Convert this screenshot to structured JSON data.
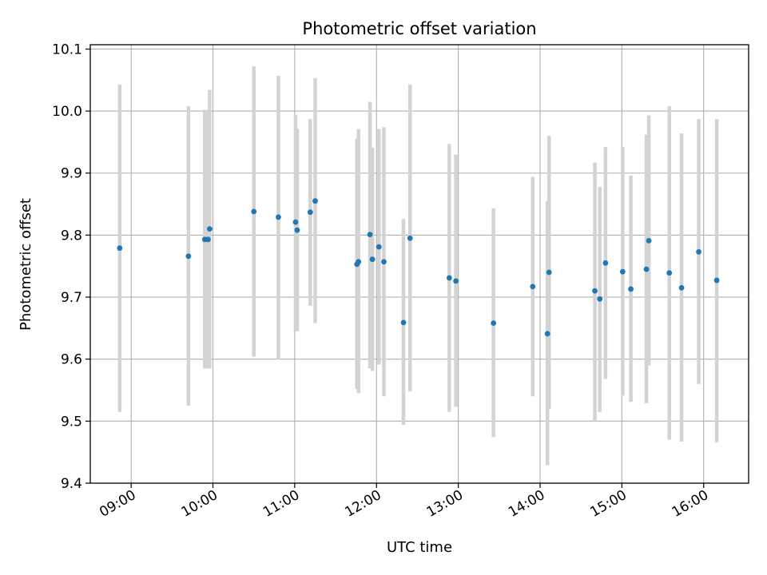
{
  "chart_data": {
    "type": "scatter",
    "title": "Photometric offset variation",
    "xlabel": "UTC time",
    "ylabel": "Photometric offset",
    "xlim": [
      8.5,
      16.55
    ],
    "ylim": [
      9.4,
      10.107
    ],
    "grid": true,
    "x_ticks": [
      {
        "value": 9,
        "label": "09:00"
      },
      {
        "value": 10,
        "label": "10:00"
      },
      {
        "value": 11,
        "label": "11:00"
      },
      {
        "value": 12,
        "label": "12:00"
      },
      {
        "value": 13,
        "label": "13:00"
      },
      {
        "value": 14,
        "label": "14:00"
      },
      {
        "value": 15,
        "label": "15:00"
      },
      {
        "value": 16,
        "label": "16:00"
      }
    ],
    "y_ticks": [
      {
        "value": 9.4,
        "label": "9.4"
      },
      {
        "value": 9.5,
        "label": "9.5"
      },
      {
        "value": 9.6,
        "label": "9.6"
      },
      {
        "value": 9.7,
        "label": "9.7"
      },
      {
        "value": 9.8,
        "label": "9.8"
      },
      {
        "value": 9.9,
        "label": "9.9"
      },
      {
        "value": 10.0,
        "label": "10.0"
      },
      {
        "value": 10.1,
        "label": "10.1"
      }
    ],
    "colors": {
      "marker": "#1f77b4",
      "errorbar": "#d3d3d3",
      "grid": "#b0b0b0",
      "axes": "#000000"
    },
    "points": [
      {
        "t": 8.86,
        "y": 9.779,
        "lo": 9.515,
        "hi": 10.043
      },
      {
        "t": 9.7,
        "y": 9.766,
        "lo": 9.525,
        "hi": 10.008
      },
      {
        "t": 9.9,
        "y": 9.793,
        "lo": 9.585,
        "hi": 10.002
      },
      {
        "t": 9.94,
        "y": 9.793,
        "lo": 9.585,
        "hi": 10.002
      },
      {
        "t": 9.96,
        "y": 9.81,
        "lo": 9.585,
        "hi": 10.034
      },
      {
        "t": 10.5,
        "y": 9.838,
        "lo": 9.604,
        "hi": 10.072
      },
      {
        "t": 10.8,
        "y": 9.829,
        "lo": 9.6,
        "hi": 10.057
      },
      {
        "t": 11.01,
        "y": 9.821,
        "lo": 9.645,
        "hi": 9.994
      },
      {
        "t": 11.03,
        "y": 9.808,
        "lo": 9.645,
        "hi": 9.972
      },
      {
        "t": 11.19,
        "y": 9.837,
        "lo": 9.686,
        "hi": 9.987
      },
      {
        "t": 11.25,
        "y": 9.855,
        "lo": 9.658,
        "hi": 10.053
      },
      {
        "t": 11.76,
        "y": 9.753,
        "lo": 9.552,
        "hi": 9.955
      },
      {
        "t": 11.78,
        "y": 9.757,
        "lo": 9.545,
        "hi": 9.971
      },
      {
        "t": 11.92,
        "y": 9.801,
        "lo": 9.585,
        "hi": 10.015
      },
      {
        "t": 11.95,
        "y": 9.761,
        "lo": 9.581,
        "hi": 9.941
      },
      {
        "t": 12.03,
        "y": 9.781,
        "lo": 9.591,
        "hi": 9.971
      },
      {
        "t": 12.09,
        "y": 9.757,
        "lo": 9.54,
        "hi": 9.974
      },
      {
        "t": 12.33,
        "y": 9.659,
        "lo": 9.494,
        "hi": 9.826
      },
      {
        "t": 12.41,
        "y": 9.795,
        "lo": 9.548,
        "hi": 10.043
      },
      {
        "t": 12.89,
        "y": 9.731,
        "lo": 9.515,
        "hi": 9.947
      },
      {
        "t": 12.97,
        "y": 9.726,
        "lo": 9.523,
        "hi": 9.93
      },
      {
        "t": 13.43,
        "y": 9.658,
        "lo": 9.474,
        "hi": 9.843
      },
      {
        "t": 13.91,
        "y": 9.717,
        "lo": 9.54,
        "hi": 9.894
      },
      {
        "t": 14.09,
        "y": 9.641,
        "lo": 9.429,
        "hi": 9.855
      },
      {
        "t": 14.11,
        "y": 9.74,
        "lo": 9.52,
        "hi": 9.96
      },
      {
        "t": 14.67,
        "y": 9.71,
        "lo": 9.5,
        "hi": 9.917
      },
      {
        "t": 14.73,
        "y": 9.697,
        "lo": 9.515,
        "hi": 9.878
      },
      {
        "t": 14.8,
        "y": 9.755,
        "lo": 9.568,
        "hi": 9.942
      },
      {
        "t": 15.01,
        "y": 9.741,
        "lo": 9.541,
        "hi": 9.942
      },
      {
        "t": 15.11,
        "y": 9.713,
        "lo": 9.531,
        "hi": 9.896
      },
      {
        "t": 15.3,
        "y": 9.745,
        "lo": 9.529,
        "hi": 9.962
      },
      {
        "t": 15.33,
        "y": 9.791,
        "lo": 9.59,
        "hi": 9.993
      },
      {
        "t": 15.58,
        "y": 9.739,
        "lo": 9.47,
        "hi": 10.008
      },
      {
        "t": 15.73,
        "y": 9.715,
        "lo": 9.467,
        "hi": 9.964
      },
      {
        "t": 15.94,
        "y": 9.773,
        "lo": 9.56,
        "hi": 9.987
      },
      {
        "t": 16.16,
        "y": 9.727,
        "lo": 9.466,
        "hi": 9.987
      }
    ]
  }
}
